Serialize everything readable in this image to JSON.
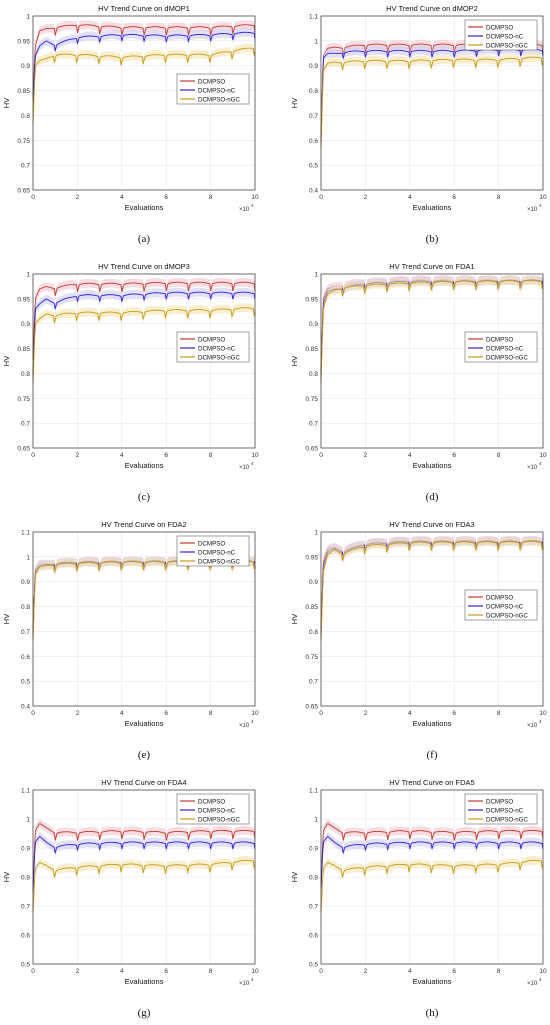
{
  "figure": {
    "series_names": [
      "DCMPSO",
      "DCMPSO-nC",
      "DCMPSO-nGC"
    ],
    "colors": {
      "DCMPSO": "#c0392b",
      "DCMPSO-nC": "#2f1fd6",
      "DCMPSO-nGC": "#c79a14",
      "band_DCMPSO": "#f2c6cf",
      "band_DCMPSO-nC": "#cfc9f3",
      "band_DCMPSO-nGC": "#f3e2b0"
    },
    "xlabel": "Evaluations",
    "ylabel": "HV",
    "x_exponent_label": "×10",
    "x_exponent_power": "4",
    "x_ticks": [
      "0",
      "2",
      "4",
      "6",
      "8",
      "10"
    ],
    "xlim": [
      0,
      10
    ]
  },
  "chart_data": [
    {
      "type": "line",
      "title": "HV Trend Curve on dMOP1",
      "caption": "(a)",
      "ylim": [
        0.65,
        1
      ],
      "y_ticks": [
        "0.65",
        "0.7",
        "0.75",
        "0.8",
        "0.85",
        "0.9",
        "0.95",
        "1"
      ],
      "legend": "center-right",
      "x": [
        0,
        0.1,
        0.3,
        0.6,
        1,
        2,
        4,
        6,
        8,
        10
      ],
      "series": [
        {
          "name": "DCMPSO",
          "values": [
            0.84,
            0.94,
            0.97,
            0.975,
            0.975,
            0.98,
            0.975,
            0.975,
            0.975,
            0.98
          ]
        },
        {
          "name": "DCMPSO-nC",
          "values": [
            0.83,
            0.92,
            0.94,
            0.95,
            0.94,
            0.955,
            0.96,
            0.958,
            0.96,
            0.965
          ]
        },
        {
          "name": "DCMPSO-nGC",
          "values": [
            0.78,
            0.9,
            0.91,
            0.915,
            0.92,
            0.92,
            0.915,
            0.92,
            0.92,
            0.935
          ]
        }
      ]
    },
    {
      "type": "line",
      "title": "HV Trend Curve on dMOP2",
      "caption": "(b)",
      "ylim": [
        0.4,
        1.1
      ],
      "y_ticks": [
        "0.4",
        "0.5",
        "0.6",
        "0.7",
        "0.8",
        "0.9",
        "1",
        "1.1"
      ],
      "legend": "top-right",
      "x": [
        0,
        0.1,
        0.3,
        0.6,
        1,
        2,
        4,
        6,
        8,
        10
      ],
      "series": [
        {
          "name": "DCMPSO",
          "values": [
            0.6,
            0.94,
            0.97,
            0.975,
            0.97,
            0.98,
            0.98,
            0.98,
            0.98,
            0.98
          ]
        },
        {
          "name": "DCMPSO-nC",
          "values": [
            0.58,
            0.93,
            0.95,
            0.95,
            0.95,
            0.955,
            0.955,
            0.955,
            0.96,
            0.96
          ]
        },
        {
          "name": "DCMPSO-nGC",
          "values": [
            0.57,
            0.88,
            0.91,
            0.915,
            0.91,
            0.915,
            0.915,
            0.92,
            0.92,
            0.93
          ]
        }
      ]
    },
    {
      "type": "line",
      "title": "HV Trend Curve on dMOP3",
      "caption": "(c)",
      "ylim": [
        0.65,
        1
      ],
      "y_ticks": [
        "0.65",
        "0.7",
        "0.75",
        "0.8",
        "0.85",
        "0.9",
        "0.95",
        "1"
      ],
      "legend": "center-right",
      "x": [
        0,
        0.1,
        0.3,
        0.6,
        1,
        2,
        4,
        6,
        8,
        10
      ],
      "series": [
        {
          "name": "DCMPSO",
          "values": [
            0.83,
            0.95,
            0.97,
            0.975,
            0.97,
            0.978,
            0.978,
            0.98,
            0.98,
            0.98
          ]
        },
        {
          "name": "DCMPSO-nC",
          "values": [
            0.79,
            0.93,
            0.94,
            0.95,
            0.94,
            0.955,
            0.955,
            0.96,
            0.96,
            0.96
          ]
        },
        {
          "name": "DCMPSO-nGC",
          "values": [
            0.78,
            0.9,
            0.91,
            0.92,
            0.915,
            0.92,
            0.92,
            0.925,
            0.925,
            0.93
          ]
        }
      ]
    },
    {
      "type": "line",
      "title": "HV Trend Curve on FDA1",
      "caption": "(d)",
      "ylim": [
        0.65,
        1
      ],
      "y_ticks": [
        "0.65",
        "0.7",
        "0.75",
        "0.8",
        "0.85",
        "0.9",
        "0.95",
        "1"
      ],
      "legend": "center-right",
      "x": [
        0,
        0.1,
        0.3,
        0.6,
        1,
        2,
        4,
        6,
        8,
        10
      ],
      "series": [
        {
          "name": "DCMPSO",
          "values": [
            0.8,
            0.95,
            0.97,
            0.975,
            0.975,
            0.98,
            0.985,
            0.985,
            0.985,
            0.985
          ]
        },
        {
          "name": "DCMPSO-nC",
          "values": [
            0.79,
            0.94,
            0.965,
            0.97,
            0.97,
            0.978,
            0.983,
            0.983,
            0.984,
            0.985
          ]
        },
        {
          "name": "DCMPSO-nGC",
          "values": [
            0.78,
            0.93,
            0.96,
            0.968,
            0.97,
            0.975,
            0.98,
            0.982,
            0.983,
            0.984
          ]
        }
      ]
    },
    {
      "type": "line",
      "title": "HV Trend Curve on FDA2",
      "caption": "(e)",
      "ylim": [
        0.4,
        1.1
      ],
      "y_ticks": [
        "0.4",
        "0.5",
        "0.6",
        "0.7",
        "0.8",
        "0.9",
        "1",
        "1.1"
      ],
      "legend": "top-right",
      "x": [
        0,
        0.1,
        0.3,
        0.6,
        1,
        2,
        4,
        6,
        8,
        10
      ],
      "series": [
        {
          "name": "DCMPSO",
          "values": [
            0.7,
            0.95,
            0.97,
            0.972,
            0.97,
            0.975,
            0.978,
            0.978,
            0.98,
            0.98
          ]
        },
        {
          "name": "DCMPSO-nC",
          "values": [
            0.68,
            0.94,
            0.965,
            0.97,
            0.968,
            0.973,
            0.976,
            0.977,
            0.978,
            0.979
          ]
        },
        {
          "name": "DCMPSO-nGC",
          "values": [
            0.66,
            0.93,
            0.96,
            0.965,
            0.965,
            0.97,
            0.974,
            0.975,
            0.976,
            0.978
          ]
        }
      ]
    },
    {
      "type": "line",
      "title": "HV Trend Curve on FDA3",
      "caption": "(f)",
      "ylim": [
        0.65,
        1
      ],
      "y_ticks": [
        "0.65",
        "0.7",
        "0.75",
        "0.8",
        "0.85",
        "0.9",
        "0.95",
        "1"
      ],
      "legend": "center-right",
      "x": [
        0,
        0.1,
        0.3,
        0.6,
        1,
        2,
        4,
        6,
        8,
        10
      ],
      "series": [
        {
          "name": "DCMPSO",
          "values": [
            0.8,
            0.94,
            0.965,
            0.97,
            0.96,
            0.975,
            0.98,
            0.98,
            0.98,
            0.98
          ]
        },
        {
          "name": "DCMPSO-nC",
          "values": [
            0.79,
            0.93,
            0.96,
            0.968,
            0.958,
            0.973,
            0.978,
            0.978,
            0.978,
            0.979
          ]
        },
        {
          "name": "DCMPSO-nGC",
          "values": [
            0.78,
            0.92,
            0.955,
            0.965,
            0.955,
            0.97,
            0.976,
            0.977,
            0.977,
            0.978
          ]
        }
      ]
    },
    {
      "type": "line",
      "title": "HV Trend Curve on FDA4",
      "caption": "(g)",
      "ylim": [
        0.5,
        1.1
      ],
      "y_ticks": [
        "0.5",
        "0.6",
        "0.7",
        "0.8",
        "0.9",
        "1",
        "1.1"
      ],
      "legend": "top-right",
      "x": [
        0,
        0.1,
        0.3,
        0.6,
        1,
        2,
        4,
        6,
        8,
        10
      ],
      "series": [
        {
          "name": "DCMPSO",
          "values": [
            0.76,
            0.96,
            0.985,
            0.97,
            0.95,
            0.95,
            0.955,
            0.95,
            0.955,
            0.955
          ]
        },
        {
          "name": "DCMPSO-nC",
          "values": [
            0.75,
            0.92,
            0.94,
            0.92,
            0.9,
            0.91,
            0.915,
            0.915,
            0.915,
            0.915
          ]
        },
        {
          "name": "DCMPSO-nGC",
          "values": [
            0.68,
            0.83,
            0.85,
            0.84,
            0.82,
            0.83,
            0.84,
            0.835,
            0.84,
            0.855
          ]
        }
      ]
    },
    {
      "type": "line",
      "title": "HV Trend Curve on FDA5",
      "caption": "(h)",
      "ylim": [
        0.5,
        1.1
      ],
      "y_ticks": [
        "0.5",
        "0.6",
        "0.7",
        "0.8",
        "0.9",
        "1",
        "1.1"
      ],
      "legend": "top-right",
      "x": [
        0,
        0.1,
        0.3,
        0.6,
        1,
        2,
        4,
        6,
        8,
        10
      ],
      "series": [
        {
          "name": "DCMPSO",
          "values": [
            0.77,
            0.96,
            0.985,
            0.97,
            0.95,
            0.95,
            0.955,
            0.95,
            0.955,
            0.955
          ]
        },
        {
          "name": "DCMPSO-nC",
          "values": [
            0.76,
            0.92,
            0.94,
            0.92,
            0.9,
            0.91,
            0.915,
            0.915,
            0.915,
            0.915
          ]
        },
        {
          "name": "DCMPSO-nGC",
          "values": [
            0.68,
            0.83,
            0.85,
            0.84,
            0.82,
            0.83,
            0.84,
            0.835,
            0.84,
            0.855
          ]
        }
      ]
    }
  ]
}
